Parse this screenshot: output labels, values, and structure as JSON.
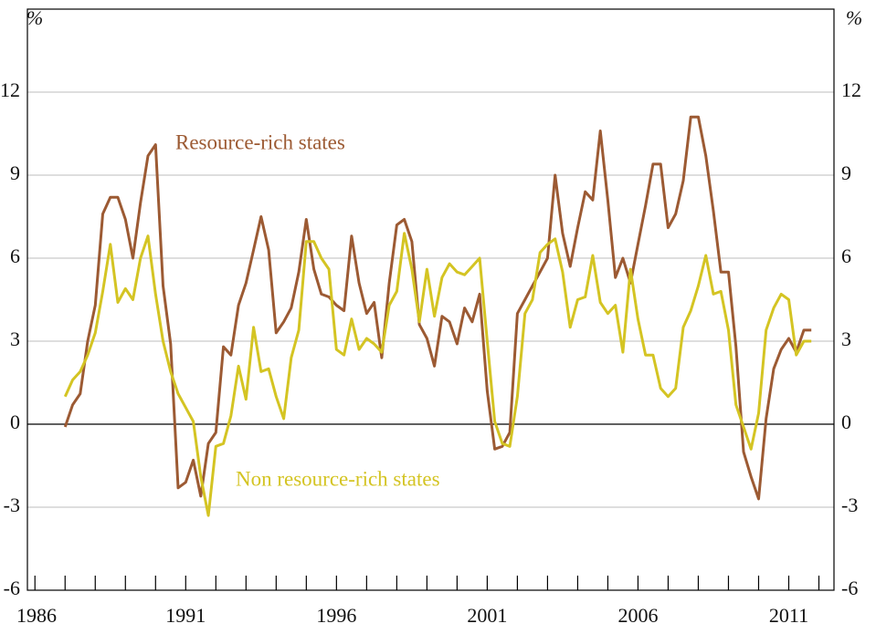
{
  "chart_data": {
    "type": "line",
    "ylabel": "%",
    "annotations": [
      {
        "text": "Resource-rich states",
        "color": "#9c5a33"
      },
      {
        "text": "Non resource-rich states",
        "color": "#d4c423"
      }
    ],
    "xlim": [
      1985.75,
      2012.5
    ],
    "xticks": [
      1986,
      1991,
      1996,
      2001,
      2006,
      2011
    ],
    "xminorticks": [
      1987,
      1988,
      1989,
      1990,
      1992,
      1993,
      1994,
      1995,
      1997,
      1998,
      1999,
      2000,
      2002,
      2003,
      2004,
      2005,
      2007,
      2008,
      2009,
      2010,
      2012
    ],
    "ylim": [
      -6,
      15
    ],
    "yticks": [
      -6,
      -3,
      0,
      3,
      6,
      9,
      12
    ],
    "y2lim": [
      -6,
      15
    ],
    "y2ticks": [
      -6,
      -3,
      0,
      3,
      6,
      9,
      12
    ],
    "grid": true,
    "x": [
      1987,
      1987.25,
      1987.5,
      1987.75,
      1988,
      1988.25,
      1988.5,
      1988.75,
      1989,
      1989.25,
      1989.5,
      1989.75,
      1990,
      1990.25,
      1990.5,
      1990.75,
      1991,
      1991.25,
      1991.5,
      1991.75,
      1992,
      1992.25,
      1992.5,
      1992.75,
      1993,
      1993.25,
      1993.5,
      1993.75,
      1994,
      1994.25,
      1994.5,
      1994.75,
      1995,
      1995.25,
      1995.5,
      1995.75,
      1996,
      1996.25,
      1996.5,
      1996.75,
      1997,
      1997.25,
      1997.5,
      1997.75,
      1998,
      1998.25,
      1998.5,
      1998.75,
      1999,
      1999.25,
      1999.5,
      1999.75,
      2000,
      2000.25,
      2000.5,
      2000.75,
      2001,
      2001.25,
      2001.5,
      2001.75,
      2002,
      2002.25,
      2002.5,
      2002.75,
      2003,
      2003.25,
      2003.5,
      2003.75,
      2004,
      2004.25,
      2004.5,
      2004.75,
      2005,
      2005.25,
      2005.5,
      2005.75,
      2006,
      2006.25,
      2006.5,
      2006.75,
      2007,
      2007.25,
      2007.5,
      2007.75,
      2008,
      2008.25,
      2008.5,
      2008.75,
      2009,
      2009.25,
      2009.5,
      2009.75,
      2010,
      2010.25,
      2010.5,
      2010.75,
      2011,
      2011.25,
      2011.5,
      2011.75
    ],
    "series": [
      {
        "name": "Resource-rich states",
        "color": "#9c5a33",
        "values": [
          -0.1,
          0.7,
          1.1,
          3.0,
          4.3,
          7.6,
          8.2,
          8.2,
          7.4,
          6.0,
          8.0,
          9.7,
          10.1,
          5.0,
          2.9,
          -2.3,
          -2.1,
          -1.3,
          -2.6,
          -0.7,
          -0.3,
          2.8,
          2.5,
          4.3,
          5.1,
          6.3,
          7.5,
          6.3,
          3.3,
          3.7,
          4.2,
          5.5,
          7.4,
          5.6,
          4.7,
          4.6,
          4.3,
          4.1,
          6.8,
          5.1,
          4.0,
          4.4,
          2.4,
          5.1,
          7.2,
          7.4,
          6.6,
          3.6,
          3.1,
          2.1,
          3.9,
          3.7,
          2.9,
          4.2,
          3.7,
          4.7,
          1.2,
          -0.9,
          -0.8,
          -0.3,
          4.0,
          4.5,
          5.0,
          5.5,
          6.0,
          9.0,
          6.9,
          5.7,
          7.1,
          8.4,
          8.1,
          10.6,
          8.1,
          5.3,
          6.0,
          5.1,
          6.5,
          7.9,
          9.4,
          9.4,
          7.1,
          7.6,
          8.8,
          11.1,
          11.1,
          9.7,
          7.7,
          5.5,
          5.5,
          2.8,
          -1.0,
          -1.9,
          -2.7,
          0.2,
          2.0,
          2.7,
          3.1,
          2.6,
          3.4,
          3.4
        ]
      },
      {
        "name": "Non resource-rich states",
        "color": "#d4c423",
        "values": [
          1.0,
          1.6,
          1.9,
          2.5,
          3.3,
          4.8,
          6.5,
          4.4,
          4.9,
          4.5,
          6.0,
          6.8,
          4.7,
          3.0,
          1.9,
          1.1,
          0.6,
          0.1,
          -1.9,
          -3.3,
          -0.8,
          -0.7,
          0.3,
          2.1,
          0.9,
          3.5,
          1.9,
          2.0,
          1.0,
          0.2,
          2.4,
          3.4,
          6.6,
          6.6,
          6.0,
          5.6,
          2.7,
          2.5,
          3.8,
          2.7,
          3.1,
          2.9,
          2.6,
          4.3,
          4.8,
          6.9,
          5.6,
          3.7,
          5.6,
          3.9,
          5.3,
          5.8,
          5.5,
          5.4,
          5.7,
          6.0,
          3.0,
          0.1,
          -0.7,
          -0.8,
          1.0,
          4.0,
          4.5,
          6.2,
          6.5,
          6.7,
          5.5,
          3.5,
          4.5,
          4.6,
          6.1,
          4.4,
          4.0,
          4.3,
          2.6,
          5.6,
          3.8,
          2.5,
          2.5,
          1.3,
          1.0,
          1.3,
          3.5,
          4.1,
          5.0,
          6.1,
          4.7,
          4.8,
          3.4,
          0.7,
          -0.1,
          -0.9,
          0.4,
          3.4,
          4.2,
          4.7,
          4.5,
          2.5,
          3.0,
          3.0
        ]
      }
    ]
  }
}
